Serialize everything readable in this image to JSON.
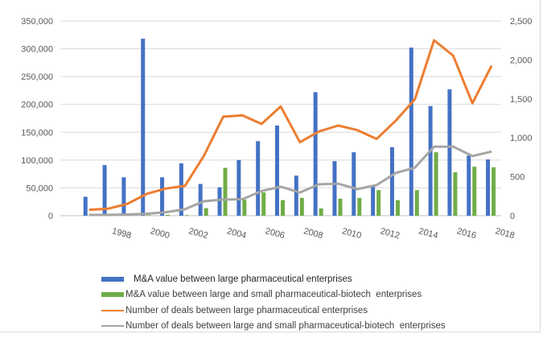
{
  "chart_data": {
    "type": "bar+line",
    "categories": [
      1997,
      1998,
      1999,
      2000,
      2001,
      2002,
      2003,
      2004,
      2005,
      2006,
      2007,
      2008,
      2009,
      2010,
      2011,
      2012,
      2013,
      2014,
      2015,
      2016,
      2017,
      2018
    ],
    "x_tick_labels": [
      "1998",
      "2000",
      "2002",
      "2004",
      "2006",
      "2008",
      "2010",
      "2012",
      "2014",
      "2016",
      "2018"
    ],
    "left_axis": {
      "ylim": [
        0,
        350000
      ],
      "ticks": [
        "0",
        "50,000",
        "100,000",
        "150,000",
        "200,000",
        "250,000",
        "300,000",
        "350,000"
      ]
    },
    "right_axis": {
      "ylim": [
        0,
        2500
      ],
      "ticks": [
        "0",
        "500",
        "1,000",
        "1,500",
        "2,000",
        "2,500"
      ]
    },
    "grid": true,
    "legend_position": "bottom",
    "series": [
      {
        "name": "M&A value between large pharmaceutical enterprises",
        "kind": "bar",
        "axis": "left",
        "color": "#4472c4",
        "values": [
          34000,
          91000,
          69000,
          318000,
          69000,
          94000,
          57000,
          51000,
          100000,
          134000,
          162000,
          72000,
          222000,
          98000,
          114000,
          53000,
          123000,
          302000,
          197000,
          227000,
          108000,
          101000
        ]
      },
      {
        "name": "M&A value between large and small pharmaceutical-biotech  enterprises",
        "kind": "bar",
        "axis": "left",
        "color": "#70ad47",
        "values": [
          0,
          0,
          500,
          1000,
          1500,
          1000,
          13500,
          86000,
          28500,
          42000,
          28000,
          32000,
          13000,
          30500,
          32000,
          46000,
          28000,
          46000,
          114000,
          78000,
          88000,
          87000
        ]
      },
      {
        "name": "Number of deals between large pharmaceutical enterprises",
        "kind": "line",
        "axis": "right",
        "color": "#ed7d31",
        "values": [
          75,
          90,
          152,
          279,
          348,
          382,
          772,
          1271,
          1288,
          1178,
          1402,
          943,
          1082,
          1157,
          1098,
          985,
          1219,
          1495,
          2252,
          2053,
          1443,
          1925
        ]
      },
      {
        "name": "Number of deals between large and small pharmaceutical-biotech  enterprises",
        "kind": "line",
        "axis": "right",
        "color": "#a5a5a5",
        "values": [
          10,
          10,
          15,
          24,
          44,
          83,
          186,
          207,
          210,
          317,
          372,
          297,
          403,
          410,
          341,
          393,
          548,
          617,
          886,
          886,
          765,
          823
        ]
      }
    ]
  }
}
